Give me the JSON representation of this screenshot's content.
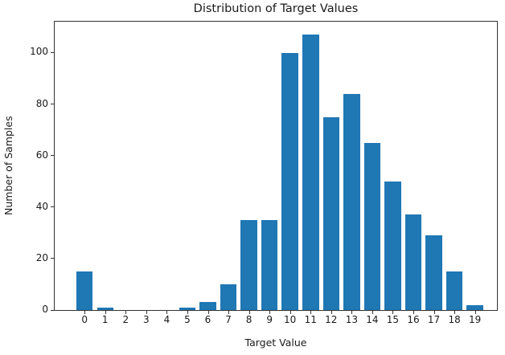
{
  "chart_data": {
    "type": "bar",
    "title": "Distribution of Target Values",
    "xlabel": "Target Value",
    "ylabel": "Number of Samples",
    "categories": [
      "0",
      "1",
      "2",
      "3",
      "4",
      "5",
      "6",
      "7",
      "8",
      "9",
      "10",
      "11",
      "12",
      "13",
      "14",
      "15",
      "16",
      "17",
      "18",
      "19"
    ],
    "values": [
      15,
      1,
      0,
      0,
      0,
      1,
      3,
      10,
      35,
      35,
      100,
      107,
      75,
      84,
      65,
      50,
      37,
      29,
      15,
      2
    ],
    "yticks": [
      0,
      20,
      40,
      60,
      80,
      100
    ],
    "ylim": [
      0,
      112
    ],
    "bar_color": "#1f77b4",
    "axis_color": "#333333",
    "text_color": "#1a1a1a",
    "grid": false,
    "legend": null
  }
}
